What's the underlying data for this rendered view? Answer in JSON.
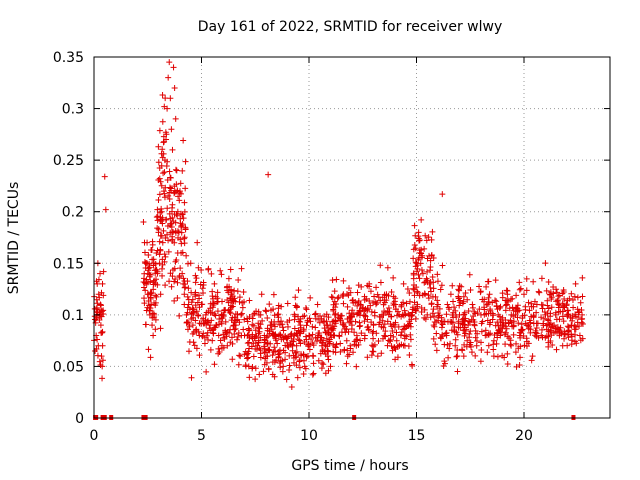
{
  "chart_data": {
    "type": "scatter",
    "title": "Day 161 of 2022, SRMTID for receiver wlwy",
    "xlabel": "GPS time / hours",
    "ylabel": "SRMTID / TECUs",
    "xlim": [
      0,
      24
    ],
    "ylim": [
      0,
      0.35
    ],
    "xticks": [
      0,
      5,
      10,
      15,
      20
    ],
    "xtick_labels": [
      "0",
      "5",
      "10",
      "15",
      "20"
    ],
    "yticks": [
      0,
      0.05,
      0.1,
      0.15,
      0.2,
      0.25,
      0.3,
      0.35
    ],
    "ytick_labels": [
      "0",
      "0.05",
      "0.1",
      "0.15",
      "0.2",
      "0.25",
      "0.3",
      "0.35"
    ],
    "grid": true,
    "marker": "plus",
    "color": "#e00000",
    "series": [
      {
        "name": "SRMTID",
        "points": [
          [
            0.05,
            0.065
          ],
          [
            0.1,
            0.08
          ],
          [
            0.12,
            0.1
          ],
          [
            0.15,
            0.13
          ],
          [
            0.18,
            0.15
          ],
          [
            0.2,
            0.07
          ],
          [
            0.22,
            0.12
          ],
          [
            0.25,
            0.095
          ],
          [
            0.28,
            0.14
          ],
          [
            0.3,
            0.11
          ],
          [
            0.32,
            0.09
          ],
          [
            0.35,
            0.06
          ],
          [
            0.38,
            0.05
          ],
          [
            0.4,
            0.07
          ],
          [
            0.5,
            0.234
          ],
          [
            0.55,
            0.202
          ],
          [
            2.3,
            0.19
          ],
          [
            2.35,
            0.17
          ],
          [
            2.4,
            0.15
          ],
          [
            2.45,
            0.13
          ],
          [
            2.5,
            0.14
          ],
          [
            2.55,
            0.12
          ],
          [
            2.6,
            0.1
          ],
          [
            2.65,
            0.11
          ],
          [
            2.7,
            0.09
          ],
          [
            2.75,
            0.08
          ],
          [
            2.8,
            0.1
          ],
          [
            2.85,
            0.13
          ],
          [
            2.9,
            0.16
          ],
          [
            2.95,
            0.14
          ],
          [
            3.0,
            0.18
          ],
          [
            3.05,
            0.15
          ],
          [
            3.1,
            0.12
          ],
          [
            3.15,
            0.2
          ],
          [
            3.2,
            0.17
          ],
          [
            3.25,
            0.22
          ],
          [
            3.3,
            0.25
          ],
          [
            3.35,
            0.27
          ],
          [
            3.4,
            0.3
          ],
          [
            3.45,
            0.33
          ],
          [
            3.5,
            0.345
          ],
          [
            3.55,
            0.31
          ],
          [
            3.6,
            0.28
          ],
          [
            3.65,
            0.26
          ],
          [
            3.7,
            0.34
          ],
          [
            3.75,
            0.32
          ],
          [
            3.8,
            0.29
          ],
          [
            3.85,
            0.24
          ],
          [
            3.9,
            0.2
          ],
          [
            3.95,
            0.18
          ],
          [
            4.0,
            0.22
          ],
          [
            4.05,
            0.16
          ],
          [
            4.1,
            0.14
          ],
          [
            4.15,
            0.13
          ],
          [
            4.2,
            0.12
          ],
          [
            4.3,
            0.1
          ],
          [
            4.4,
            0.11
          ],
          [
            4.5,
            0.15
          ],
          [
            4.6,
            0.09
          ],
          [
            4.7,
            0.12
          ],
          [
            4.8,
            0.17
          ],
          [
            4.9,
            0.08
          ],
          [
            5.0,
            0.11
          ],
          [
            5.2,
            0.1
          ],
          [
            5.4,
            0.09
          ],
          [
            5.6,
            0.13
          ],
          [
            5.8,
            0.08
          ],
          [
            6.0,
            0.1
          ],
          [
            6.2,
            0.07
          ],
          [
            6.4,
            0.12
          ],
          [
            6.6,
            0.09
          ],
          [
            6.8,
            0.06
          ],
          [
            7.0,
            0.08
          ],
          [
            7.2,
            0.05
          ],
          [
            7.4,
            0.1
          ],
          [
            7.6,
            0.07
          ],
          [
            7.8,
            0.12
          ],
          [
            8.0,
            0.06
          ],
          [
            8.1,
            0.236
          ],
          [
            8.2,
            0.09
          ],
          [
            8.4,
            0.04
          ],
          [
            8.6,
            0.08
          ],
          [
            8.8,
            0.05
          ],
          [
            9.0,
            0.07
          ],
          [
            9.2,
            0.03
          ],
          [
            9.4,
            0.06
          ],
          [
            9.6,
            0.09
          ],
          [
            9.8,
            0.05
          ],
          [
            10.0,
            0.08
          ],
          [
            10.2,
            0.06
          ],
          [
            10.4,
            0.11
          ],
          [
            10.6,
            0.07
          ],
          [
            10.8,
            0.09
          ],
          [
            11.0,
            0.05
          ],
          [
            11.2,
            0.1
          ],
          [
            11.4,
            0.08
          ],
          [
            11.6,
            0.12
          ],
          [
            11.8,
            0.06
          ],
          [
            12.0,
            0.09
          ],
          [
            12.2,
            0.07
          ],
          [
            12.4,
            0.11
          ],
          [
            12.6,
            0.08
          ],
          [
            12.8,
            0.13
          ],
          [
            13.0,
            0.09
          ],
          [
            13.2,
            0.06
          ],
          [
            13.4,
            0.1
          ],
          [
            13.6,
            0.12
          ],
          [
            13.8,
            0.08
          ],
          [
            14.0,
            0.11
          ],
          [
            14.2,
            0.07
          ],
          [
            14.4,
            0.13
          ],
          [
            14.6,
            0.09
          ],
          [
            14.8,
            0.1
          ],
          [
            15.0,
            0.15
          ],
          [
            15.1,
            0.18
          ],
          [
            15.2,
            0.16
          ],
          [
            15.3,
            0.14
          ],
          [
            15.4,
            0.12
          ],
          [
            15.5,
            0.1
          ],
          [
            15.6,
            0.13
          ],
          [
            15.8,
            0.09
          ],
          [
            16.0,
            0.11
          ],
          [
            16.2,
            0.217
          ],
          [
            16.4,
            0.08
          ],
          [
            16.6,
            0.12
          ],
          [
            16.8,
            0.07
          ],
          [
            17.0,
            0.1
          ],
          [
            17.2,
            0.06
          ],
          [
            17.4,
            0.09
          ],
          [
            17.6,
            0.11
          ],
          [
            17.8,
            0.07
          ],
          [
            18.0,
            0.1
          ],
          [
            18.2,
            0.08
          ],
          [
            18.4,
            0.12
          ],
          [
            18.6,
            0.06
          ],
          [
            18.8,
            0.1
          ],
          [
            19.0,
            0.09
          ],
          [
            19.2,
            0.11
          ],
          [
            19.4,
            0.07
          ],
          [
            19.6,
            0.1
          ],
          [
            19.8,
            0.08
          ],
          [
            20.0,
            0.12
          ],
          [
            20.2,
            0.09
          ],
          [
            20.4,
            0.06
          ],
          [
            20.6,
            0.11
          ],
          [
            20.8,
            0.08
          ],
          [
            21.0,
            0.1
          ],
          [
            21.2,
            0.12
          ],
          [
            21.4,
            0.09
          ],
          [
            21.6,
            0.11
          ],
          [
            21.8,
            0.07
          ],
          [
            22.0,
            0.1
          ],
          [
            22.2,
            0.09
          ],
          [
            22.4,
            0.13
          ],
          [
            22.6,
            0.08
          ],
          [
            22.7,
            0.1
          ]
        ]
      }
    ],
    "generated_scatter": {
      "note": "Scatter density model used to render the dense point cloud",
      "bands": [
        {
          "x_start": 0.0,
          "x_end": 0.45,
          "mean": 0.1,
          "spread": 0.035,
          "count": 40
        },
        {
          "x_start": 2.3,
          "x_end": 2.9,
          "mean": 0.13,
          "spread": 0.04,
          "count": 70
        },
        {
          "x_start": 2.9,
          "x_end": 3.6,
          "mean": 0.2,
          "spread": 0.08,
          "count": 90
        },
        {
          "x_start": 3.6,
          "x_end": 4.3,
          "mean": 0.18,
          "spread": 0.06,
          "count": 80
        },
        {
          "x_start": 4.3,
          "x_end": 7.0,
          "mean": 0.1,
          "spread": 0.035,
          "count": 220
        },
        {
          "x_start": 7.0,
          "x_end": 11.0,
          "mean": 0.075,
          "spread": 0.03,
          "count": 320
        },
        {
          "x_start": 11.0,
          "x_end": 14.8,
          "mean": 0.095,
          "spread": 0.03,
          "count": 280
        },
        {
          "x_start": 14.8,
          "x_end": 15.8,
          "mean": 0.14,
          "spread": 0.04,
          "count": 90
        },
        {
          "x_start": 15.8,
          "x_end": 22.8,
          "mean": 0.095,
          "spread": 0.03,
          "count": 480
        }
      ]
    },
    "zero_markers": [
      0.05,
      0.1,
      0.4,
      0.5,
      0.8,
      2.3,
      2.4,
      12.1,
      22.3
    ]
  }
}
